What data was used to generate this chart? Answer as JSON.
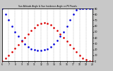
{
  "title": "Sun Altitude Angle & Sun Incidence Angle on PV Panels",
  "x_start": 6,
  "x_end": 20,
  "y_min": 0,
  "y_max": 90,
  "y_right_ticks": [
    0,
    10,
    20,
    30,
    40,
    50,
    60,
    70,
    80,
    90
  ],
  "blue_color": "#0000dd",
  "red_color": "#dd0000",
  "bg_color": "#c8c8c8",
  "plot_bg_color": "#ffffff",
  "grid_color": "#999999",
  "blue_x": [
    6.0,
    6.5,
    7.0,
    7.5,
    8.0,
    8.5,
    9.0,
    9.5,
    10.0,
    10.5,
    11.0,
    11.5,
    12.0,
    12.5,
    13.0,
    13.5,
    14.0,
    14.5,
    15.0,
    15.5,
    16.0,
    16.5,
    17.0,
    17.5,
    18.0,
    18.5,
    19.0,
    19.5,
    20.0
  ],
  "blue_y": [
    90,
    80,
    70,
    60,
    50,
    42,
    35,
    29,
    24,
    21,
    19,
    18,
    18,
    19,
    21,
    24,
    29,
    35,
    42,
    50,
    60,
    70,
    80,
    88,
    90,
    90,
    90,
    90,
    90
  ],
  "red_x": [
    6.0,
    6.5,
    7.0,
    7.5,
    8.0,
    8.5,
    9.0,
    9.5,
    10.0,
    10.5,
    11.0,
    11.5,
    12.0,
    12.5,
    13.0,
    13.5,
    14.0,
    14.5,
    15.0,
    15.5,
    16.0,
    16.5,
    17.0,
    17.5,
    18.0,
    18.5,
    19.0,
    19.5,
    20.0
  ],
  "red_y": [
    0,
    5,
    10,
    16,
    22,
    28,
    34,
    40,
    46,
    52,
    57,
    62,
    65,
    66,
    65,
    62,
    57,
    52,
    46,
    40,
    34,
    28,
    22,
    16,
    10,
    5,
    2,
    0,
    0
  ],
  "x_ticks": [
    6,
    7,
    8,
    9,
    10,
    11,
    12,
    13,
    14,
    15,
    16,
    17,
    18,
    19,
    20
  ],
  "marker_size": 1.8,
  "figsize": [
    1.6,
    1.0
  ],
  "dpi": 100
}
